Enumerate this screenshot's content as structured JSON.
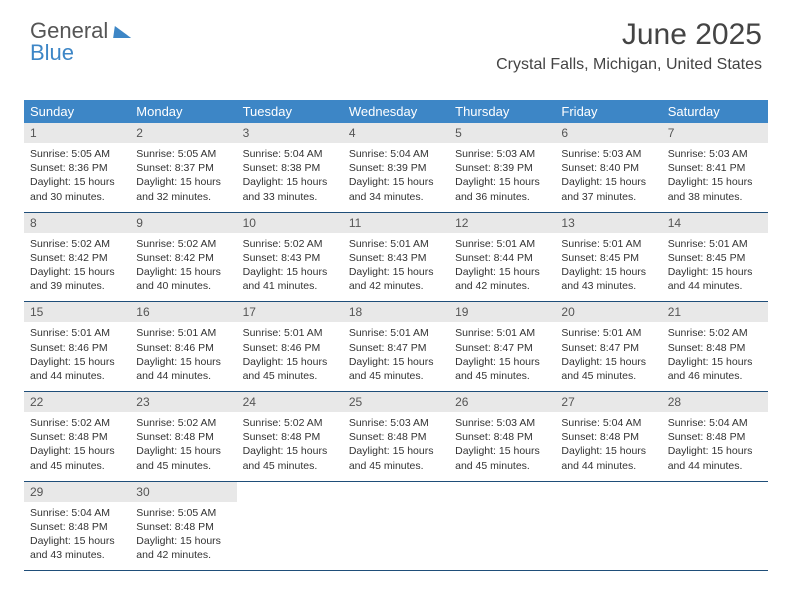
{
  "brand": {
    "part1": "General",
    "part2": "Blue"
  },
  "title": "June 2025",
  "location": "Crystal Falls, Michigan, United States",
  "colors": {
    "header_bg": "#3d86c6",
    "header_text": "#ffffff",
    "daynum_bg": "#e8e8e8",
    "week_border": "#1f4e79",
    "brand_blue": "#3d86c6"
  },
  "daysOfWeek": [
    "Sunday",
    "Monday",
    "Tuesday",
    "Wednesday",
    "Thursday",
    "Friday",
    "Saturday"
  ],
  "weeks": [
    [
      {
        "n": "1",
        "sr": "Sunrise: 5:05 AM",
        "ss": "Sunset: 8:36 PM",
        "d1": "Daylight: 15 hours",
        "d2": "and 30 minutes."
      },
      {
        "n": "2",
        "sr": "Sunrise: 5:05 AM",
        "ss": "Sunset: 8:37 PM",
        "d1": "Daylight: 15 hours",
        "d2": "and 32 minutes."
      },
      {
        "n": "3",
        "sr": "Sunrise: 5:04 AM",
        "ss": "Sunset: 8:38 PM",
        "d1": "Daylight: 15 hours",
        "d2": "and 33 minutes."
      },
      {
        "n": "4",
        "sr": "Sunrise: 5:04 AM",
        "ss": "Sunset: 8:39 PM",
        "d1": "Daylight: 15 hours",
        "d2": "and 34 minutes."
      },
      {
        "n": "5",
        "sr": "Sunrise: 5:03 AM",
        "ss": "Sunset: 8:39 PM",
        "d1": "Daylight: 15 hours",
        "d2": "and 36 minutes."
      },
      {
        "n": "6",
        "sr": "Sunrise: 5:03 AM",
        "ss": "Sunset: 8:40 PM",
        "d1": "Daylight: 15 hours",
        "d2": "and 37 minutes."
      },
      {
        "n": "7",
        "sr": "Sunrise: 5:03 AM",
        "ss": "Sunset: 8:41 PM",
        "d1": "Daylight: 15 hours",
        "d2": "and 38 minutes."
      }
    ],
    [
      {
        "n": "8",
        "sr": "Sunrise: 5:02 AM",
        "ss": "Sunset: 8:42 PM",
        "d1": "Daylight: 15 hours",
        "d2": "and 39 minutes."
      },
      {
        "n": "9",
        "sr": "Sunrise: 5:02 AM",
        "ss": "Sunset: 8:42 PM",
        "d1": "Daylight: 15 hours",
        "d2": "and 40 minutes."
      },
      {
        "n": "10",
        "sr": "Sunrise: 5:02 AM",
        "ss": "Sunset: 8:43 PM",
        "d1": "Daylight: 15 hours",
        "d2": "and 41 minutes."
      },
      {
        "n": "11",
        "sr": "Sunrise: 5:01 AM",
        "ss": "Sunset: 8:43 PM",
        "d1": "Daylight: 15 hours",
        "d2": "and 42 minutes."
      },
      {
        "n": "12",
        "sr": "Sunrise: 5:01 AM",
        "ss": "Sunset: 8:44 PM",
        "d1": "Daylight: 15 hours",
        "d2": "and 42 minutes."
      },
      {
        "n": "13",
        "sr": "Sunrise: 5:01 AM",
        "ss": "Sunset: 8:45 PM",
        "d1": "Daylight: 15 hours",
        "d2": "and 43 minutes."
      },
      {
        "n": "14",
        "sr": "Sunrise: 5:01 AM",
        "ss": "Sunset: 8:45 PM",
        "d1": "Daylight: 15 hours",
        "d2": "and 44 minutes."
      }
    ],
    [
      {
        "n": "15",
        "sr": "Sunrise: 5:01 AM",
        "ss": "Sunset: 8:46 PM",
        "d1": "Daylight: 15 hours",
        "d2": "and 44 minutes."
      },
      {
        "n": "16",
        "sr": "Sunrise: 5:01 AM",
        "ss": "Sunset: 8:46 PM",
        "d1": "Daylight: 15 hours",
        "d2": "and 44 minutes."
      },
      {
        "n": "17",
        "sr": "Sunrise: 5:01 AM",
        "ss": "Sunset: 8:46 PM",
        "d1": "Daylight: 15 hours",
        "d2": "and 45 minutes."
      },
      {
        "n": "18",
        "sr": "Sunrise: 5:01 AM",
        "ss": "Sunset: 8:47 PM",
        "d1": "Daylight: 15 hours",
        "d2": "and 45 minutes."
      },
      {
        "n": "19",
        "sr": "Sunrise: 5:01 AM",
        "ss": "Sunset: 8:47 PM",
        "d1": "Daylight: 15 hours",
        "d2": "and 45 minutes."
      },
      {
        "n": "20",
        "sr": "Sunrise: 5:01 AM",
        "ss": "Sunset: 8:47 PM",
        "d1": "Daylight: 15 hours",
        "d2": "and 45 minutes."
      },
      {
        "n": "21",
        "sr": "Sunrise: 5:02 AM",
        "ss": "Sunset: 8:48 PM",
        "d1": "Daylight: 15 hours",
        "d2": "and 46 minutes."
      }
    ],
    [
      {
        "n": "22",
        "sr": "Sunrise: 5:02 AM",
        "ss": "Sunset: 8:48 PM",
        "d1": "Daylight: 15 hours",
        "d2": "and 45 minutes."
      },
      {
        "n": "23",
        "sr": "Sunrise: 5:02 AM",
        "ss": "Sunset: 8:48 PM",
        "d1": "Daylight: 15 hours",
        "d2": "and 45 minutes."
      },
      {
        "n": "24",
        "sr": "Sunrise: 5:02 AM",
        "ss": "Sunset: 8:48 PM",
        "d1": "Daylight: 15 hours",
        "d2": "and 45 minutes."
      },
      {
        "n": "25",
        "sr": "Sunrise: 5:03 AM",
        "ss": "Sunset: 8:48 PM",
        "d1": "Daylight: 15 hours",
        "d2": "and 45 minutes."
      },
      {
        "n": "26",
        "sr": "Sunrise: 5:03 AM",
        "ss": "Sunset: 8:48 PM",
        "d1": "Daylight: 15 hours",
        "d2": "and 45 minutes."
      },
      {
        "n": "27",
        "sr": "Sunrise: 5:04 AM",
        "ss": "Sunset: 8:48 PM",
        "d1": "Daylight: 15 hours",
        "d2": "and 44 minutes."
      },
      {
        "n": "28",
        "sr": "Sunrise: 5:04 AM",
        "ss": "Sunset: 8:48 PM",
        "d1": "Daylight: 15 hours",
        "d2": "and 44 minutes."
      }
    ],
    [
      {
        "n": "29",
        "sr": "Sunrise: 5:04 AM",
        "ss": "Sunset: 8:48 PM",
        "d1": "Daylight: 15 hours",
        "d2": "and 43 minutes."
      },
      {
        "n": "30",
        "sr": "Sunrise: 5:05 AM",
        "ss": "Sunset: 8:48 PM",
        "d1": "Daylight: 15 hours",
        "d2": "and 42 minutes."
      },
      {
        "empty": true
      },
      {
        "empty": true
      },
      {
        "empty": true
      },
      {
        "empty": true
      },
      {
        "empty": true
      }
    ]
  ]
}
